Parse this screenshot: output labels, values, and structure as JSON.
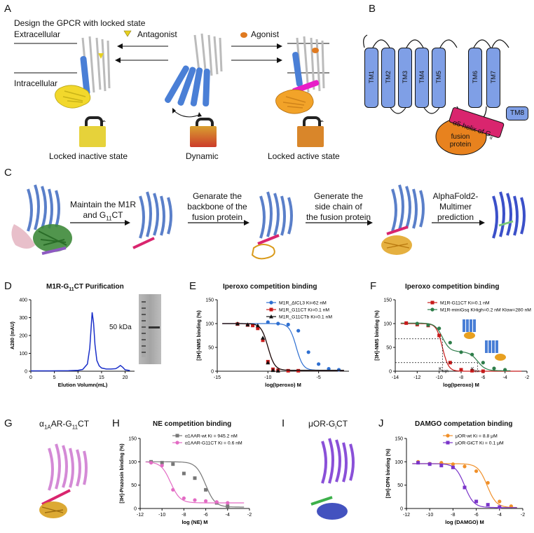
{
  "panelA": {
    "label": "A",
    "title": "Design the GPCR with locked state",
    "extracellular": "Extracellular",
    "intracellular": "Intracellular",
    "antagonist": "Antagonist",
    "agonist": "Agonist",
    "state_inactive": "Locked inactive state",
    "state_dynamic": "Dynamic",
    "state_active": "Locked active state",
    "colors": {
      "inactive_lock": "#e6d23a",
      "dynamic_lock_top": "#d9a030",
      "dynamic_lock_bottom": "#cc3b2a",
      "active_lock": "#d9862a",
      "helix_blue": "#4a7fd6",
      "gprotein_yellow": "#f2d82c",
      "gprotein_orange": "#f2a329",
      "magenta": "#e81ec8"
    }
  },
  "panelB": {
    "label": "B",
    "tm": [
      "TM1",
      "TM2",
      "TM3",
      "TM4",
      "TM5",
      "TM6",
      "TM7"
    ],
    "tm8": "TM8",
    "helix_label": "α5 helix of G",
    "helix_sub": "α",
    "fusion_label_1": "fusion",
    "fusion_label_2": "protein",
    "colors": {
      "tm_fill": "#7f9fe6",
      "helix_fill": "#d9256e",
      "fusion_fill": "#e8821e"
    }
  },
  "panelC": {
    "label": "C",
    "step1_a": "Maintain the M1R",
    "step1_b": "and G",
    "step1_sub": "11",
    "step1_c": "CT",
    "step2_a": "Genarate the",
    "step2_b": "backbone of the",
    "step2_c": "fusion protein",
    "step3_a": "Generate the",
    "step3_b": "side chain of",
    "step3_c": "the fusion protein",
    "step4_a": "AlphaFold2-",
    "step4_b": "Multimer",
    "step4_c": "prediction"
  },
  "panelD": {
    "label": "D",
    "title_a": "M1R-G",
    "title_sub": "11",
    "title_b": "CT Purification",
    "gel_label": "50 kDa",
    "chart_data": {
      "type": "line",
      "xlabel": "Elution Volumn(mL)",
      "ylabel": "A280 (mAU)",
      "xlim": [
        0,
        22
      ],
      "ylim": [
        0,
        400
      ],
      "xticks": [
        0,
        5,
        10,
        15,
        20
      ],
      "yticks": [
        0,
        100,
        200,
        300,
        400
      ],
      "x": [
        0,
        4,
        8,
        10,
        11,
        12,
        12.5,
        13,
        13.3,
        13.6,
        14,
        14.5,
        15,
        16,
        17,
        18,
        18.5,
        19,
        19.5,
        20,
        21
      ],
      "y": [
        2,
        2,
        3,
        5,
        10,
        40,
        130,
        330,
        270,
        150,
        60,
        30,
        18,
        12,
        12,
        14,
        22,
        32,
        22,
        8,
        4
      ]
    }
  },
  "panelE": {
    "label": "E",
    "title": "Iperoxo competition binding",
    "chart_data": {
      "type": "scatter",
      "xlabel": "log(Iperoxo) M",
      "ylabel": "[3H]-NMS binding (%)",
      "xlim": [
        -15,
        -2
      ],
      "ylim": [
        0,
        150
      ],
      "xticks": [
        -15,
        -10,
        -5
      ],
      "yticks": [
        0,
        50,
        100,
        150
      ],
      "series": [
        {
          "name": "M1R_ΔICL3 Ki=62 nM",
          "color": "#2e6fd1",
          "marker": "circle",
          "logki": -7.21,
          "x": [
            -10,
            -9,
            -8,
            -7,
            -6,
            -5,
            -4,
            -3
          ],
          "y": [
            103,
            100,
            98,
            85,
            40,
            15,
            5,
            3
          ]
        },
        {
          "name": "M1R_G11CT Ki=0.1 nM",
          "color": "#c71a1a",
          "marker": "square",
          "logki": -10.0,
          "x": [
            -13,
            -12,
            -11.5,
            -11,
            -10.5,
            -10,
            -9.5,
            -9,
            -8,
            -7
          ],
          "y": [
            99,
            97,
            96,
            90,
            65,
            20,
            4,
            2,
            1,
            1
          ]
        },
        {
          "name": "M1R_G11CTb Ki=0.1 nM",
          "color": "#111111",
          "marker": "triangle",
          "logki": -10.0,
          "x": [
            -13,
            -12,
            -11,
            -10.5,
            -10,
            -9.5,
            -9
          ],
          "y": [
            100,
            98,
            96,
            70,
            18,
            2,
            1
          ]
        }
      ]
    }
  },
  "panelF": {
    "label": "F",
    "title": "Iperoxo competition binding",
    "khigh": "K",
    "khigh_sub": "high",
    "klow": "K",
    "klow_sub": "low",
    "chart_data": {
      "type": "scatter",
      "xlabel": "log(Iperoxo) M",
      "ylabel": "[3H]-NMS binding (%)",
      "xlim": [
        -14,
        -2
      ],
      "ylim": [
        0,
        150
      ],
      "xticks": [
        -14,
        -12,
        -10,
        -8,
        -6,
        -4,
        -2
      ],
      "yticks": [
        0,
        50,
        100,
        150
      ],
      "series": [
        {
          "name": "M1R-G11CT Ki=0.1 nM",
          "color": "#c71a1a",
          "marker": "square",
          "x": [
            -13,
            -12,
            -11,
            -10,
            -9,
            -8,
            -7,
            -6
          ],
          "y": [
            101,
            98,
            96,
            75,
            18,
            3,
            1,
            0
          ]
        },
        {
          "name": "M1R-miniGsq KHigh=0.2 nM Klow=280 nM",
          "color": "#2e7d4a",
          "marker": "circle",
          "x": [
            -12,
            -11,
            -10,
            -9,
            -8,
            -7,
            -6,
            -5,
            -4
          ],
          "y": [
            100,
            97,
            90,
            60,
            40,
            35,
            18,
            6,
            3
          ]
        }
      ]
    }
  },
  "panelG": {
    "label": "G",
    "title_a": "α",
    "title_sub": "1A",
    "title_b": "AR-G",
    "title_sub2": "11",
    "title_c": "CT"
  },
  "panelH": {
    "label": "H",
    "title": "NE competition binding",
    "chart_data": {
      "type": "scatter",
      "xlabel": "log (NE) M",
      "ylabel": "[3H]-Prazosin binding (%)",
      "xlim": [
        -12,
        -2
      ],
      "ylim": [
        0,
        150
      ],
      "xticks": [
        -12,
        -10,
        -8,
        -6,
        -4,
        -2
      ],
      "yticks": [
        0,
        50,
        100,
        150
      ],
      "series": [
        {
          "name": "α1AAR-wt Ki = 945.2 nM",
          "color": "#777777",
          "marker": "square",
          "logki": -6.02,
          "x": [
            -11,
            -10,
            -9,
            -8,
            -7,
            -6,
            -5,
            -4
          ],
          "y": [
            100,
            98,
            95,
            75,
            65,
            40,
            12,
            5
          ]
        },
        {
          "name": "α1AAR-G11CT Ki = 0.6 nM",
          "color": "#e36bc4",
          "marker": "circle",
          "logki": -9.22,
          "x": [
            -11,
            -10,
            -9,
            -8,
            -7,
            -6,
            -5,
            -4
          ],
          "y": [
            98,
            92,
            40,
            22,
            18,
            16,
            14,
            12
          ]
        }
      ]
    }
  },
  "panelI": {
    "label": "I",
    "title_a": "μOR-G",
    "title_sub": "i",
    "title_b": "CT"
  },
  "panelJ": {
    "label": "J",
    "title": "DAMGO competation binding",
    "chart_data": {
      "type": "scatter",
      "xlabel": "log (DAMGO) M",
      "ylabel": "[3H]-DPN binding (%)",
      "xlim": [
        -12,
        -2
      ],
      "ylim": [
        0,
        150
      ],
      "xticks": [
        -12,
        -10,
        -8,
        -6,
        -4,
        -2
      ],
      "yticks": [
        0,
        50,
        100,
        150
      ],
      "series": [
        {
          "name": "μOR-wt Ki = 8.8 μM",
          "color": "#f0902a",
          "marker": "circle",
          "logki": -5.06,
          "x": [
            -11,
            -10,
            -9,
            -8,
            -7,
            -6,
            -5,
            -4,
            -3
          ],
          "y": [
            100,
            96,
            98,
            95,
            90,
            80,
            55,
            15,
            5
          ]
        },
        {
          "name": "μOR-GiCT Ki = 0.1 μM",
          "color": "#7a34c9",
          "marker": "square",
          "logki": -7.0,
          "x": [
            -11,
            -10,
            -9,
            -8,
            -7,
            -6,
            -5,
            -4
          ],
          "y": [
            98,
            95,
            92,
            88,
            45,
            15,
            8,
            3
          ]
        }
      ]
    }
  }
}
